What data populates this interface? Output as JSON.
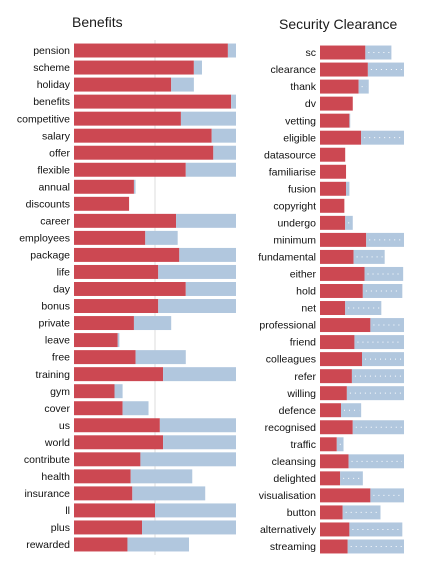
{
  "colors": {
    "red": "#cc4852",
    "blue": "#b1c7de",
    "grid": "#dddddd",
    "dots": "#ffffff"
  },
  "chart_data": [
    {
      "type": "bar",
      "orientation": "horizontal",
      "stacked": true,
      "title": "Benefits",
      "xlim": [
        0,
        1
      ],
      "grid": true,
      "categories": [
        "pension",
        "scheme",
        "holiday",
        "benefits",
        "competitive",
        "salary",
        "offer",
        "flexible",
        "annual",
        "discounts",
        "career",
        "employees",
        "package",
        "life",
        "day",
        "bonus",
        "private",
        "leave",
        "free",
        "training",
        "gym",
        "cover",
        "us",
        "world",
        "contribute",
        "health",
        "insurance",
        "ll",
        "plus",
        "rewarded"
      ],
      "series": [
        {
          "values": [
            0.95,
            0.74,
            0.6,
            0.97,
            0.66,
            0.85,
            0.86,
            0.69,
            0.37,
            0.34,
            0.63,
            0.44,
            0.65,
            0.52,
            0.69,
            0.52,
            0.37,
            0.27,
            0.38,
            0.55,
            0.25,
            0.3,
            0.53,
            0.55,
            0.41,
            0.35,
            0.36,
            0.5,
            0.42,
            0.33
          ]
        },
        {
          "values": [
            0.05,
            0.05,
            0.14,
            0.03,
            0.34,
            0.15,
            0.14,
            0.31,
            0.01,
            0.0,
            0.37,
            0.2,
            0.35,
            0.48,
            0.31,
            0.48,
            0.23,
            0.01,
            0.31,
            0.45,
            0.05,
            0.16,
            0.47,
            0.45,
            0.59,
            0.38,
            0.45,
            0.5,
            0.58,
            0.38
          ]
        }
      ]
    },
    {
      "type": "bar",
      "orientation": "horizontal",
      "stacked": true,
      "title": "Security Clearance",
      "xlim": [
        0,
        1
      ],
      "grid": false,
      "categories": [
        "sc",
        "clearance",
        "thank",
        "dv",
        "vetting",
        "eligible",
        "datasource",
        "familiarise",
        "fusion",
        "copyright",
        "undergo",
        "minimum",
        "fundamental",
        "either",
        "hold",
        "net",
        "professional",
        "friend",
        "colleagues",
        "refer",
        "willing",
        "defence",
        "recognised",
        "traffic",
        "cleansing",
        "delighted",
        "visualisation",
        "button",
        "alternatively",
        "streaming"
      ],
      "series": [
        {
          "values": [
            0.54,
            0.57,
            0.46,
            0.39,
            0.35,
            0.49,
            0.3,
            0.31,
            0.31,
            0.29,
            0.3,
            0.55,
            0.4,
            0.53,
            0.51,
            0.3,
            0.6,
            0.41,
            0.5,
            0.38,
            0.32,
            0.25,
            0.39,
            0.2,
            0.34,
            0.24,
            0.6,
            0.27,
            0.35,
            0.33
          ]
        },
        {
          "values": [
            0.31,
            0.43,
            0.12,
            0.0,
            0.01,
            0.51,
            0.0,
            0.0,
            0.04,
            0.0,
            0.09,
            0.45,
            0.37,
            0.46,
            0.47,
            0.43,
            0.4,
            0.59,
            0.5,
            0.62,
            0.68,
            0.24,
            0.61,
            0.08,
            0.66,
            0.27,
            0.4,
            0.45,
            0.63,
            0.67
          ]
        }
      ]
    }
  ]
}
